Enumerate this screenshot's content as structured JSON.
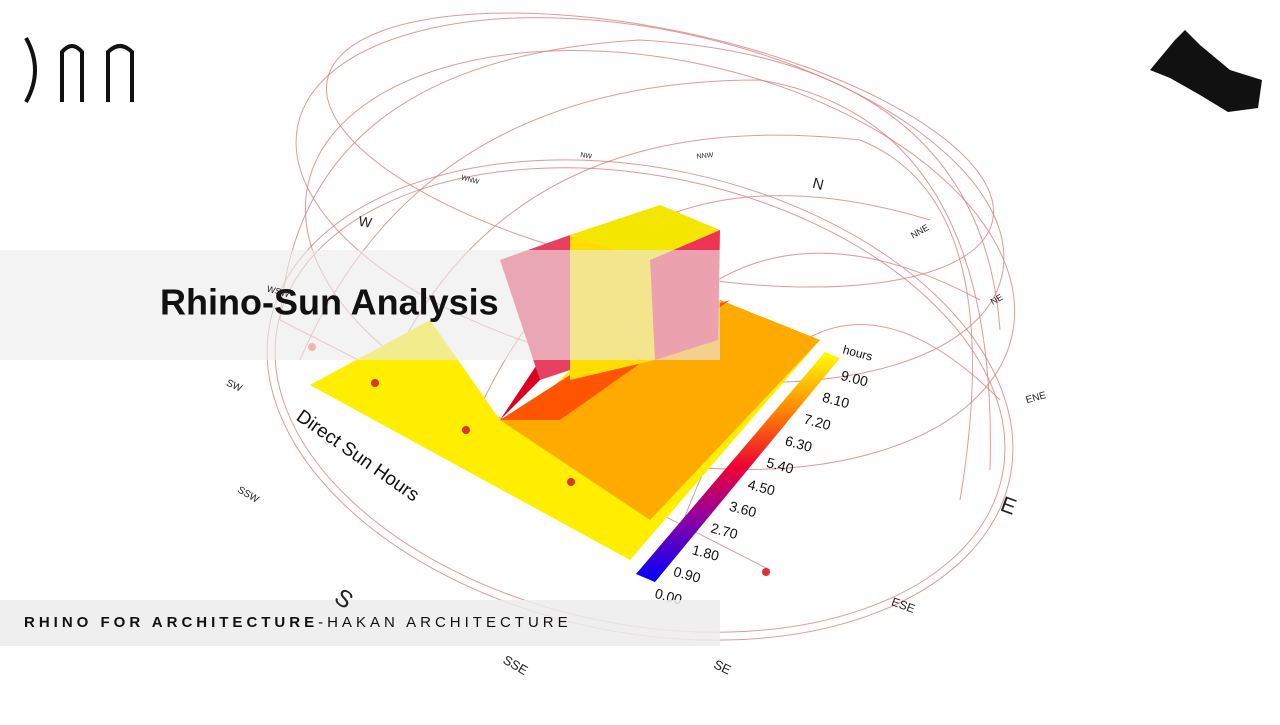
{
  "header": {
    "title": "Rhino-Sun Analysis"
  },
  "footer": {
    "brand": "RHINO FOR ARCHITECTURE",
    "author": "-HAKAN ARCHITECTURE"
  },
  "analysis_label": "Direct Sun Hours",
  "legend": {
    "title": "hours",
    "labels": [
      "9.00",
      "8.10",
      "7.20",
      "6.30",
      "5.40",
      "4.50",
      "3.60",
      "2.70",
      "1.80",
      "0.90",
      "0.00"
    ]
  },
  "compass": [
    "N",
    "NNE",
    "NE",
    "ENE",
    "E",
    "ESE",
    "SE",
    "SSE",
    "S",
    "SSW",
    "SW",
    "WSW",
    "W",
    "WNW",
    "NW",
    "NNW"
  ]
}
